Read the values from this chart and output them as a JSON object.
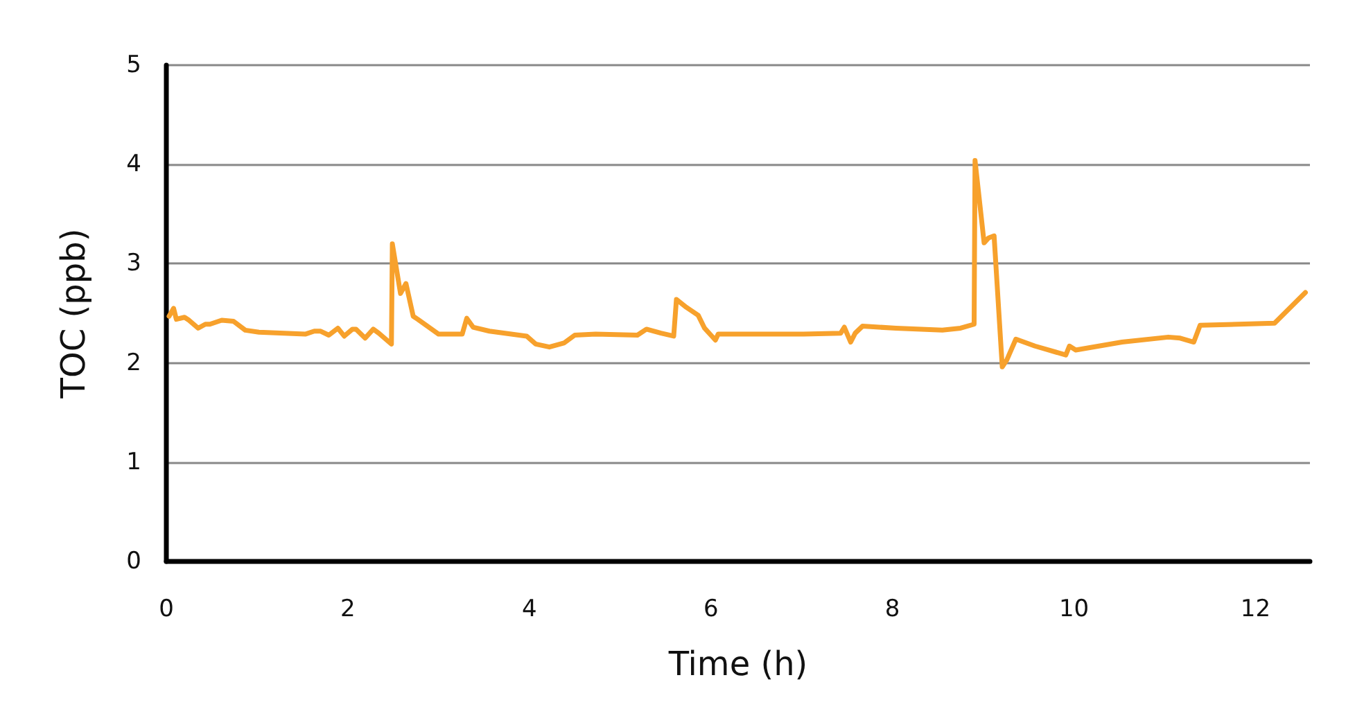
{
  "chart_data": {
    "type": "line",
    "xlabel": "Time (h)",
    "ylabel": "TOC (ppb)",
    "color": "#f7a12c",
    "x": [
      0.03,
      0.08,
      0.11,
      0.2,
      0.25,
      0.35,
      0.43,
      0.48,
      0.61,
      0.74,
      0.87,
      1.02,
      1.53,
      1.63,
      1.7,
      1.79,
      1.89,
      1.96,
      2.05,
      2.09,
      2.19,
      2.28,
      2.34,
      2.48,
      2.49,
      2.58,
      2.64,
      2.72,
      2.77,
      3.0,
      3.26,
      3.31,
      3.38,
      3.56,
      3.97,
      4.07,
      4.22,
      4.38,
      4.5,
      4.73,
      5.19,
      5.29,
      5.45,
      5.59,
      5.62,
      5.73,
      5.86,
      5.93,
      6.0,
      6.05,
      6.08,
      6.51,
      7.02,
      7.43,
      7.47,
      7.54,
      7.59,
      7.67,
      8.04,
      8.55,
      8.75,
      8.9,
      8.91,
      9.01,
      9.06,
      9.12,
      9.21,
      9.26,
      9.36,
      9.57,
      9.91,
      9.95,
      10.02,
      10.53,
      11.04,
      11.17,
      11.32,
      11.39,
      12.21,
      12.55
    ],
    "values": [
      2.47,
      2.55,
      2.44,
      2.46,
      2.43,
      2.35,
      2.39,
      2.39,
      2.43,
      2.42,
      2.33,
      2.31,
      2.29,
      2.32,
      2.32,
      2.28,
      2.35,
      2.27,
      2.34,
      2.34,
      2.25,
      2.34,
      2.3,
      2.19,
      3.2,
      2.7,
      2.8,
      2.47,
      2.44,
      2.29,
      2.29,
      2.45,
      2.36,
      2.32,
      2.27,
      2.19,
      2.16,
      2.2,
      2.28,
      2.29,
      2.28,
      2.34,
      2.3,
      2.27,
      2.64,
      2.56,
      2.48,
      2.35,
      2.28,
      2.23,
      2.29,
      2.29,
      2.29,
      2.3,
      2.36,
      2.21,
      2.3,
      2.37,
      2.35,
      2.33,
      2.35,
      2.39,
      4.04,
      3.21,
      3.26,
      3.28,
      1.96,
      2.03,
      2.24,
      2.17,
      2.08,
      2.17,
      2.13,
      2.21,
      2.26,
      2.25,
      2.21,
      2.38,
      2.4,
      2.71
    ],
    "xlim": [
      0,
      12.6
    ],
    "ylim": [
      0,
      5
    ],
    "xticks": [
      0,
      2,
      4,
      6,
      8,
      10,
      12
    ],
    "yticks": [
      0,
      1,
      2,
      3,
      4,
      5
    ],
    "grid": "y"
  }
}
